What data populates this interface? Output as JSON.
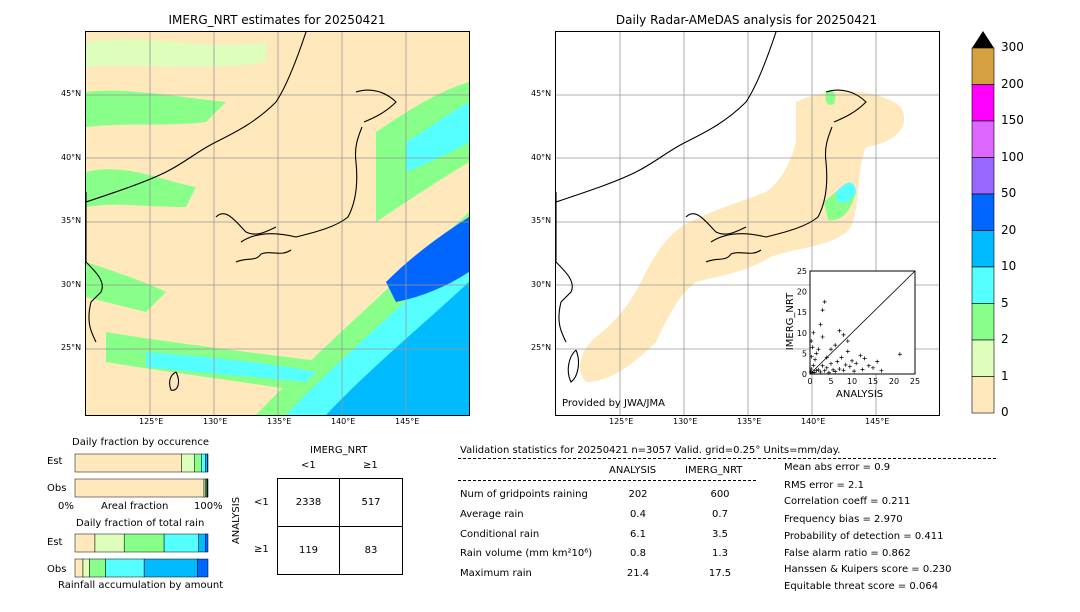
{
  "left_map": {
    "title": "IMERG_NRT estimates for 20250421",
    "lat_labels": [
      "45°N",
      "40°N",
      "35°N",
      "30°N",
      "25°N"
    ],
    "lon_labels": [
      "125°E",
      "130°E",
      "135°E",
      "140°E",
      "145°E"
    ]
  },
  "right_map": {
    "title": "Daily Radar-AMeDAS analysis for 20250421",
    "lat_labels": [
      "45°N",
      "40°N",
      "35°N",
      "30°N",
      "25°N"
    ],
    "lon_labels": [
      "125°E",
      "130°E",
      "135°E",
      "140°E",
      "145°E"
    ],
    "credit": "Provided by JWA/JMA"
  },
  "colorbar": {
    "labels": [
      "300",
      "200",
      "150",
      "100",
      "50",
      "20",
      "10",
      "5",
      "2",
      "1",
      "0"
    ],
    "colors": [
      "#d4a040",
      "#ff00ff",
      "#dd66ff",
      "#9966ff",
      "#0066ff",
      "#00bbff",
      "#55ffff",
      "#88ff88",
      "#ddffbb",
      "#ffe8bb"
    ]
  },
  "scatter": {
    "ylabel": "IMERG_NRT",
    "xlabel": "ANALYSIS",
    "ticks": [
      "0",
      "5",
      "10",
      "15",
      "20",
      "25"
    ]
  },
  "occurrence": {
    "title": "Daily fraction by occurence",
    "rows": [
      "Est",
      "Obs"
    ],
    "axis_left": "0%",
    "axis_mid": "Areal fraction",
    "axis_right": "100%"
  },
  "total_rain": {
    "title": "Daily fraction of total rain",
    "rows": [
      "Est",
      "Obs"
    ],
    "footer": "Rainfall accumulation by amount"
  },
  "contingency": {
    "col_title": "IMERG_NRT",
    "col_labels": [
      "<1",
      "≥1"
    ],
    "row_title": "ANALYSIS",
    "row_labels": [
      "<1",
      "≥1"
    ],
    "cells": [
      [
        "2338",
        "517"
      ],
      [
        "119",
        "83"
      ]
    ]
  },
  "validation": {
    "header": "Validation statistics for 20250421  n=3057 Valid. grid=0.25° Units=mm/day.",
    "col_analysis": "ANALYSIS",
    "col_imerg": "IMERG_NRT",
    "rows": [
      {
        "label": "Num of gridpoints raining",
        "analysis": "202",
        "imerg": "600"
      },
      {
        "label": "Average rain",
        "analysis": "0.4",
        "imerg": "0.7"
      },
      {
        "label": "Conditional rain",
        "analysis": "6.1",
        "imerg": "3.5"
      },
      {
        "label": "Rain volume (mm km²10⁶)",
        "analysis": "0.8",
        "imerg": "1.3"
      },
      {
        "label": "Maximum rain",
        "analysis": "21.4",
        "imerg": "17.5"
      }
    ],
    "scores": [
      "Mean abs error =    0.9",
      "RMS error =    2.1",
      "Correlation coeff =  0.211",
      "Frequency bias =  2.970",
      "Probability of detection =  0.411",
      "False alarm ratio =  0.862",
      "Hanssen & Kuipers score =  0.230",
      "Equitable threat score =  0.064"
    ]
  },
  "chart_data": [
    {
      "type": "scatter",
      "xlabel": "ANALYSIS",
      "ylabel": "IMERG_NRT",
      "xlim": [
        0,
        25
      ],
      "ylim": [
        0,
        25
      ],
      "points": [
        [
          0.2,
          0.5
        ],
        [
          0.3,
          1.2
        ],
        [
          0.5,
          0.3
        ],
        [
          0.8,
          2.1
        ],
        [
          1.0,
          0.4
        ],
        [
          1.2,
          3.5
        ],
        [
          1.5,
          0.8
        ],
        [
          0.4,
          4.2
        ],
        [
          0.6,
          6.5
        ],
        [
          0.3,
          8.0
        ],
        [
          2.0,
          1.0
        ],
        [
          2.5,
          0.5
        ],
        [
          3.0,
          2.0
        ],
        [
          3.5,
          0.8
        ],
        [
          4.0,
          1.5
        ],
        [
          4.5,
          0.3
        ],
        [
          5.0,
          2.5
        ],
        [
          5.5,
          1.0
        ],
        [
          6.0,
          0.6
        ],
        [
          6.5,
          3.0
        ],
        [
          7.0,
          1.2
        ],
        [
          7.5,
          4.0
        ],
        [
          8.0,
          0.9
        ],
        [
          8.5,
          2.2
        ],
        [
          9.0,
          5.5
        ],
        [
          9.5,
          1.8
        ],
        [
          10.0,
          3.2
        ],
        [
          10.5,
          0.7
        ],
        [
          11.0,
          2.6
        ],
        [
          12.0,
          4.5
        ],
        [
          12.5,
          1.1
        ],
        [
          13.0,
          3.8
        ],
        [
          14.0,
          2.0
        ],
        [
          15.0,
          1.5
        ],
        [
          16.0,
          3.0
        ],
        [
          17.0,
          0.8
        ],
        [
          21.4,
          4.8
        ],
        [
          2.0,
          6.0
        ],
        [
          3.0,
          9.0
        ],
        [
          3.5,
          17.5
        ],
        [
          3.0,
          15.5
        ],
        [
          2.5,
          12.0
        ],
        [
          6.0,
          7.0
        ],
        [
          8.0,
          9.5
        ],
        [
          7.0,
          10.5
        ],
        [
          9.0,
          8.0
        ],
        [
          1.5,
          5.0
        ],
        [
          0.8,
          10.0
        ],
        [
          4.0,
          4.0
        ],
        [
          5.0,
          6.0
        ]
      ]
    },
    {
      "type": "bar",
      "title": "Daily fraction by occurence",
      "categories": [
        "Est",
        "Obs"
      ],
      "series": [
        {
          "color": "#ffe8bb",
          "values": [
            0.8,
            0.97
          ]
        },
        {
          "color": "#ddffbb",
          "values": [
            0.1,
            0.01
          ]
        },
        {
          "color": "#88ff88",
          "values": [
            0.05,
            0.01
          ]
        },
        {
          "color": "#55ffff",
          "values": [
            0.03,
            0.005
          ]
        },
        {
          "color": "#00bbff",
          "values": [
            0.015,
            0.003
          ]
        },
        {
          "color": "#0066ff",
          "values": [
            0.005,
            0.002
          ]
        }
      ]
    },
    {
      "type": "bar",
      "title": "Daily fraction of total rain",
      "categories": [
        "Est",
        "Obs"
      ],
      "series": [
        {
          "color": "#ffe8bb",
          "values": [
            0.15,
            0.06
          ]
        },
        {
          "color": "#ddffbb",
          "values": [
            0.22,
            0.05
          ]
        },
        {
          "color": "#88ff88",
          "values": [
            0.3,
            0.12
          ]
        },
        {
          "color": "#55ffff",
          "values": [
            0.26,
            0.29
          ]
        },
        {
          "color": "#00bbff",
          "values": [
            0.05,
            0.4
          ]
        },
        {
          "color": "#0066ff",
          "values": [
            0.02,
            0.08
          ]
        }
      ]
    }
  ]
}
